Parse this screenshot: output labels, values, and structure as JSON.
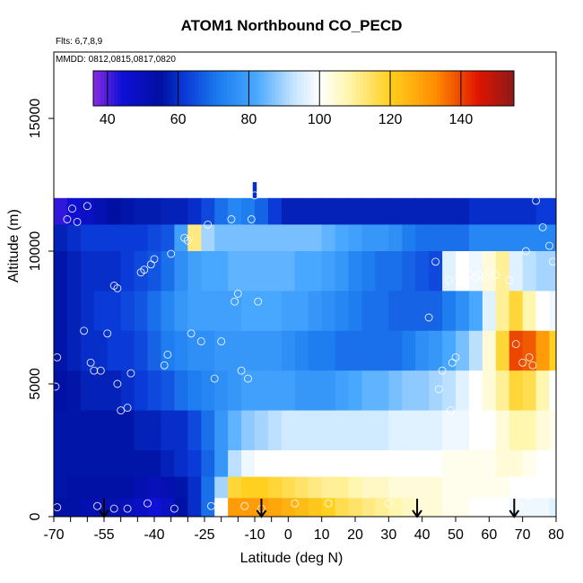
{
  "title": "ATOM1 Northbound CO_PECD",
  "flights_note": "Flts: 6,7,8,9",
  "dates_note": "MMDD: 0812,0815,0817,0820",
  "colorbar": {
    "ticks": [
      40,
      60,
      80,
      100,
      120,
      140
    ],
    "range": [
      36,
      155
    ],
    "stops": [
      {
        "v": 36,
        "c": "#8a2be2"
      },
      {
        "v": 44,
        "c": "#1010d8"
      },
      {
        "v": 55,
        "c": "#0010a0"
      },
      {
        "v": 62,
        "c": "#0a3ad8"
      },
      {
        "v": 72,
        "c": "#1e7ef0"
      },
      {
        "v": 82,
        "c": "#48a8ff"
      },
      {
        "v": 93,
        "c": "#c8e6ff"
      },
      {
        "v": 100,
        "c": "#ffffff"
      },
      {
        "v": 108,
        "c": "#fff6b0"
      },
      {
        "v": 120,
        "c": "#ffd020"
      },
      {
        "v": 133,
        "c": "#ff8c00"
      },
      {
        "v": 145,
        "c": "#e01400"
      },
      {
        "v": 155,
        "c": "#8b1a1a"
      }
    ]
  },
  "chart_data": {
    "type": "heatmap",
    "title": "ATOM1 Northbound CO_PECD",
    "xlabel": "Latitude (deg N)",
    "ylabel": "Altitude (m)",
    "xlim": [
      -70,
      80
    ],
    "ylim": [
      0,
      17500
    ],
    "x_ticks": [
      -70,
      -55,
      -40,
      -25,
      -10,
      0,
      10,
      20,
      30,
      40,
      50,
      60,
      70,
      80
    ],
    "x_minor_ticks": [
      -65,
      -60,
      -50,
      -45,
      -35,
      -30,
      -20,
      -15,
      -5
    ],
    "y_ticks": [
      0,
      5000,
      10000,
      15000
    ],
    "colorbar_label": "",
    "lat_columns": [
      -68,
      -64,
      -60,
      -56,
      -52,
      -48,
      -44,
      -40,
      -36,
      -32,
      -28,
      -24,
      -20,
      -16,
      -12,
      -8,
      -4,
      0,
      4,
      8,
      12,
      16,
      20,
      24,
      28,
      32,
      36,
      40,
      44,
      48,
      52,
      56,
      60,
      64,
      68,
      72,
      76,
      80
    ],
    "lat_column_width": 4,
    "altitude_bands": [
      {
        "z0": 11000,
        "z1": 12000,
        "values": [
          42,
          45,
          48,
          52,
          55,
          56,
          57,
          57,
          58,
          58,
          60,
          64,
          70,
          74,
          72,
          68,
          62,
          58,
          58,
          58,
          58,
          58,
          58,
          58,
          58,
          58,
          58,
          58,
          58,
          58,
          58,
          60,
          60,
          60,
          60,
          60,
          62,
          62
        ]
      },
      {
        "z0": 10000,
        "z1": 11000,
        "values": [
          58,
          60,
          62,
          62,
          62,
          62,
          62,
          64,
          66,
          80,
          112,
          90,
          86,
          86,
          86,
          86,
          86,
          86,
          86,
          86,
          84,
          82,
          80,
          78,
          78,
          76,
          72,
          70,
          70,
          70,
          70,
          74,
          74,
          74,
          74,
          74,
          74,
          74
        ]
      },
      {
        "z0": 8500,
        "z1": 10000,
        "values": [
          56,
          58,
          60,
          60,
          60,
          62,
          64,
          66,
          70,
          76,
          80,
          82,
          82,
          84,
          84,
          84,
          84,
          84,
          82,
          82,
          80,
          78,
          74,
          72,
          70,
          70,
          68,
          66,
          64,
          96,
          100,
          98,
          104,
          110,
          96,
          92,
          90,
          90
        ]
      },
      {
        "z0": 7000,
        "z1": 8500,
        "values": [
          56,
          58,
          60,
          62,
          62,
          64,
          66,
          70,
          74,
          78,
          80,
          80,
          80,
          80,
          82,
          82,
          82,
          80,
          80,
          78,
          76,
          74,
          72,
          70,
          70,
          68,
          68,
          68,
          68,
          72,
          76,
          82,
          96,
          110,
          118,
          108,
          100,
          98
        ]
      },
      {
        "z0": 5500,
        "z1": 7000,
        "values": [
          56,
          58,
          60,
          60,
          62,
          62,
          64,
          68,
          72,
          74,
          76,
          76,
          78,
          78,
          78,
          78,
          78,
          76,
          74,
          72,
          72,
          70,
          70,
          70,
          70,
          70,
          72,
          76,
          78,
          82,
          86,
          92,
          104,
          118,
          140,
          138,
          130,
          120
        ]
      },
      {
        "z0": 4000,
        "z1": 5500,
        "values": [
          54,
          56,
          58,
          58,
          58,
          60,
          62,
          64,
          66,
          70,
          72,
          74,
          76,
          78,
          80,
          80,
          80,
          80,
          78,
          78,
          78,
          80,
          82,
          84,
          84,
          86,
          88,
          88,
          90,
          92,
          96,
          100,
          104,
          110,
          118,
          116,
          108,
          100
        ]
      },
      {
        "z0": 2500,
        "z1": 4000,
        "values": [
          56,
          56,
          56,
          56,
          56,
          56,
          58,
          58,
          60,
          60,
          64,
          70,
          78,
          84,
          88,
          90,
          92,
          94,
          94,
          94,
          94,
          94,
          94,
          94,
          94,
          96,
          96,
          96,
          96,
          98,
          98,
          100,
          100,
          104,
          108,
          108,
          104,
          102
        ]
      },
      {
        "z0": 1500,
        "z1": 2500,
        "values": [
          56,
          56,
          56,
          56,
          56,
          56,
          56,
          56,
          58,
          60,
          62,
          68,
          78,
          92,
          98,
          100,
          100,
          100,
          100,
          100,
          100,
          100,
          100,
          100,
          100,
          100,
          100,
          100,
          100,
          102,
          102,
          102,
          102,
          104,
          104,
          102,
          100,
          100
        ]
      },
      {
        "z0": 700,
        "z1": 1500,
        "values": [
          56,
          54,
          54,
          54,
          54,
          54,
          52,
          50,
          52,
          56,
          60,
          70,
          90,
          118,
          120,
          120,
          118,
          116,
          114,
          112,
          110,
          110,
          108,
          106,
          106,
          104,
          104,
          104,
          104,
          102,
          102,
          102,
          102,
          102,
          100,
          100,
          100,
          100
        ]
      },
      {
        "z0": 0,
        "z1": 700,
        "values": [
          54,
          54,
          52,
          52,
          52,
          50,
          48,
          44,
          48,
          54,
          60,
          70,
          100,
          130,
          130,
          130,
          128,
          126,
          124,
          122,
          120,
          116,
          114,
          112,
          110,
          108,
          106,
          104,
          104,
          102,
          102,
          100,
          100,
          100,
          98,
          98,
          98,
          96
        ]
      }
    ],
    "isolated_points": [
      {
        "lat": -10,
        "z0": 12000,
        "z1": 12600,
        "value": 60
      }
    ],
    "sample_circles": [
      [
        -69,
        6000
      ],
      [
        -69.5,
        4900
      ],
      [
        -69,
        350
      ],
      [
        -66,
        11200
      ],
      [
        -64.5,
        11600
      ],
      [
        -63,
        11100
      ],
      [
        -60,
        11700
      ],
      [
        -61,
        7000
      ],
      [
        -59,
        5800
      ],
      [
        -58,
        5500
      ],
      [
        -56,
        5500
      ],
      [
        -57,
        400
      ],
      [
        -54,
        6900
      ],
      [
        -52,
        8700
      ],
      [
        -51,
        8600
      ],
      [
        -51,
        5000
      ],
      [
        -50,
        4000
      ],
      [
        -48,
        4100
      ],
      [
        -47,
        5400
      ],
      [
        -44,
        9200
      ],
      [
        -43,
        9300
      ],
      [
        -41,
        9500
      ],
      [
        -40,
        9700
      ],
      [
        -37,
        5700
      ],
      [
        -36,
        6100
      ],
      [
        -35,
        9900
      ],
      [
        -31,
        10500
      ],
      [
        -30,
        10400
      ],
      [
        -29,
        6900
      ],
      [
        -26,
        6600
      ],
      [
        -24,
        11000
      ],
      [
        -22,
        5200
      ],
      [
        -20,
        6600
      ],
      [
        -17,
        11200
      ],
      [
        -16,
        8100
      ],
      [
        -15,
        8400
      ],
      [
        -14,
        5500
      ],
      [
        -12,
        5200
      ],
      [
        -11,
        11200
      ],
      [
        -9,
        8100
      ],
      [
        -10,
        12100
      ],
      [
        -13,
        400
      ],
      [
        -8,
        300
      ],
      [
        -34,
        300
      ],
      [
        -23,
        400
      ],
      [
        -52,
        300
      ],
      [
        -48,
        300
      ],
      [
        -42,
        500
      ],
      [
        42,
        7500
      ],
      [
        44,
        9600
      ],
      [
        45,
        4800
      ],
      [
        46,
        5500
      ],
      [
        48,
        8900
      ],
      [
        48.5,
        4000
      ],
      [
        49,
        5800
      ],
      [
        50,
        6000
      ],
      [
        52,
        9200
      ],
      [
        54,
        9100
      ],
      [
        56,
        9000
      ],
      [
        57,
        9100
      ],
      [
        59,
        9000
      ],
      [
        60,
        9200
      ],
      [
        62,
        9100
      ],
      [
        66,
        8900
      ],
      [
        68,
        6500
      ],
      [
        70,
        5800
      ],
      [
        71,
        10000
      ],
      [
        72,
        6000
      ],
      [
        73,
        5700
      ],
      [
        74,
        11900
      ],
      [
        76,
        10900
      ],
      [
        78,
        10200
      ],
      [
        79,
        9600
      ],
      [
        80,
        800
      ],
      [
        72,
        800
      ],
      [
        69,
        400
      ],
      [
        65,
        600
      ],
      [
        58,
        700
      ],
      [
        54,
        700
      ],
      [
        48,
        1600
      ],
      [
        30,
        500
      ],
      [
        12,
        500
      ],
      [
        2,
        500
      ]
    ],
    "arrow_markers_lat": [
      -55,
      -8,
      38.5,
      67.5
    ]
  }
}
